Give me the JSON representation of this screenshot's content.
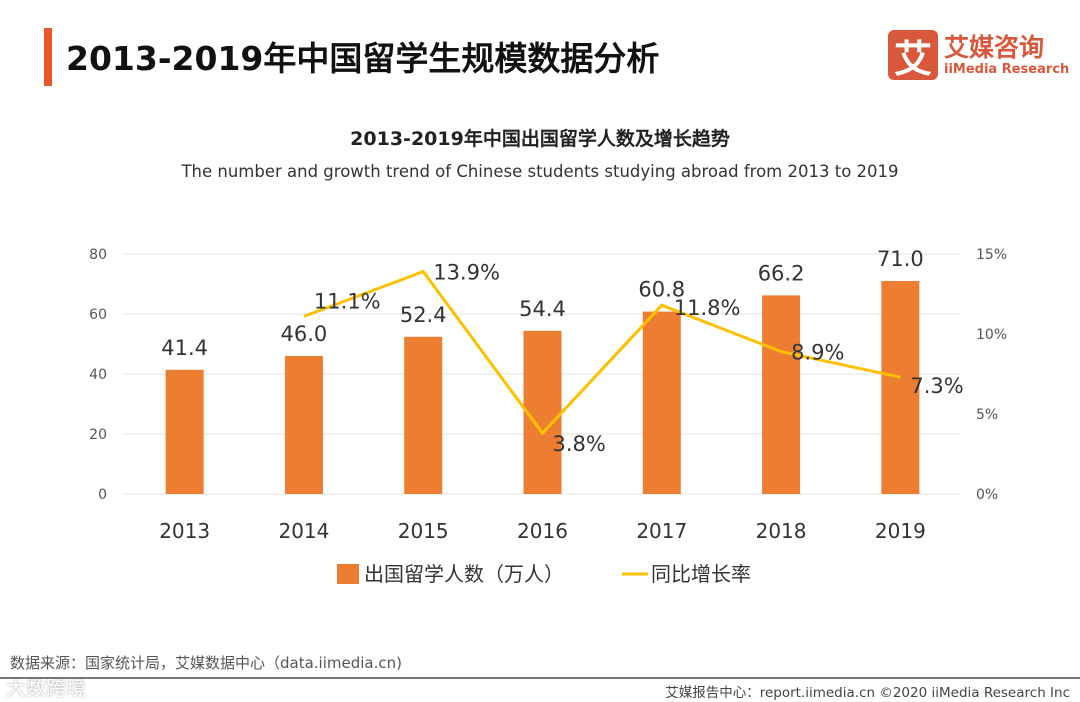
{
  "header": {
    "title": "2013-2019年中国留学生规模数据分析",
    "logo_mark": "艾",
    "logo_cn": "艾媒咨询",
    "logo_en": "iiMedia Research"
  },
  "chart_data": {
    "type": "bar",
    "title": "2013-2019年中国出国留学人数及增长趋势",
    "subtitle": "The number and growth trend of Chinese students studying abroad from 2013 to 2019",
    "categories": [
      "2013",
      "2014",
      "2015",
      "2016",
      "2017",
      "2018",
      "2019"
    ],
    "series": [
      {
        "name": "出国留学人数（万人）",
        "type": "bar",
        "axis": "left",
        "color": "#ed7d31",
        "values": [
          41.4,
          46.0,
          52.4,
          54.4,
          60.8,
          66.2,
          71.0
        ],
        "labels": [
          "41.4",
          "46.0",
          "52.4",
          "54.4",
          "60.8",
          "66.2",
          "71.0"
        ]
      },
      {
        "name": "同比增长率",
        "type": "line",
        "axis": "right",
        "color": "#ffc000",
        "values": [
          null,
          11.1,
          13.9,
          3.8,
          11.8,
          8.9,
          7.3
        ],
        "labels": [
          null,
          "11.1%",
          "13.9%",
          "3.8%",
          "11.8%",
          "8.9%",
          "7.3%"
        ]
      }
    ],
    "left_axis": {
      "ylim": [
        0,
        80
      ],
      "ticks": [
        "0",
        "20",
        "40",
        "60",
        "80"
      ]
    },
    "right_axis": {
      "ylim": [
        0,
        15
      ],
      "ticks": [
        "0%",
        "5%",
        "10%",
        "15%"
      ]
    },
    "grid": true,
    "legend": "bottom"
  },
  "footer": {
    "source": "数据来源：国家统计局，艾媒数据中心（data.iimedia.cn)",
    "report": "艾媒报告中心：report.iimedia.cn  ©2020  iiMedia Research  Inc",
    "watermark": "大数跨境"
  }
}
